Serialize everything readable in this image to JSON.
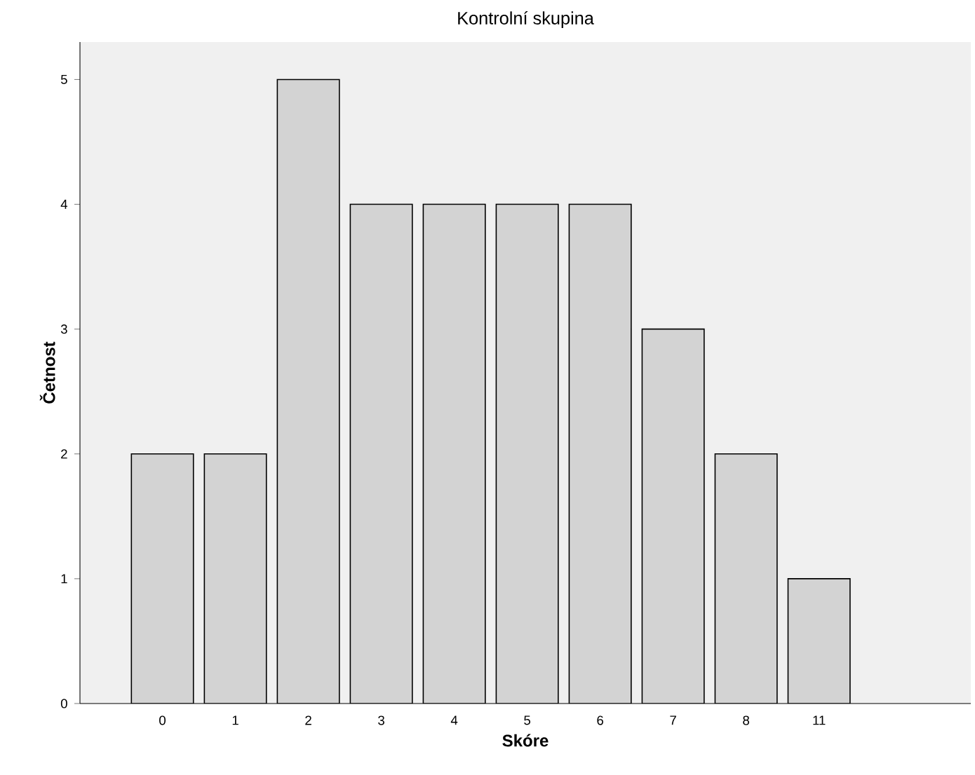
{
  "chart_data": {
    "type": "bar",
    "title": "Kontrolní skupina",
    "xlabel": "Skóre",
    "ylabel": "Četnost",
    "categories": [
      "0",
      "1",
      "2",
      "3",
      "4",
      "5",
      "6",
      "7",
      "8",
      "11"
    ],
    "values": [
      2,
      2,
      5,
      4,
      4,
      4,
      4,
      3,
      2,
      1
    ],
    "color": "#d3d3d3",
    "ylim": [
      0,
      5.3
    ],
    "yticks": [
      0,
      1,
      2,
      3,
      4,
      5
    ],
    "grid": false
  }
}
